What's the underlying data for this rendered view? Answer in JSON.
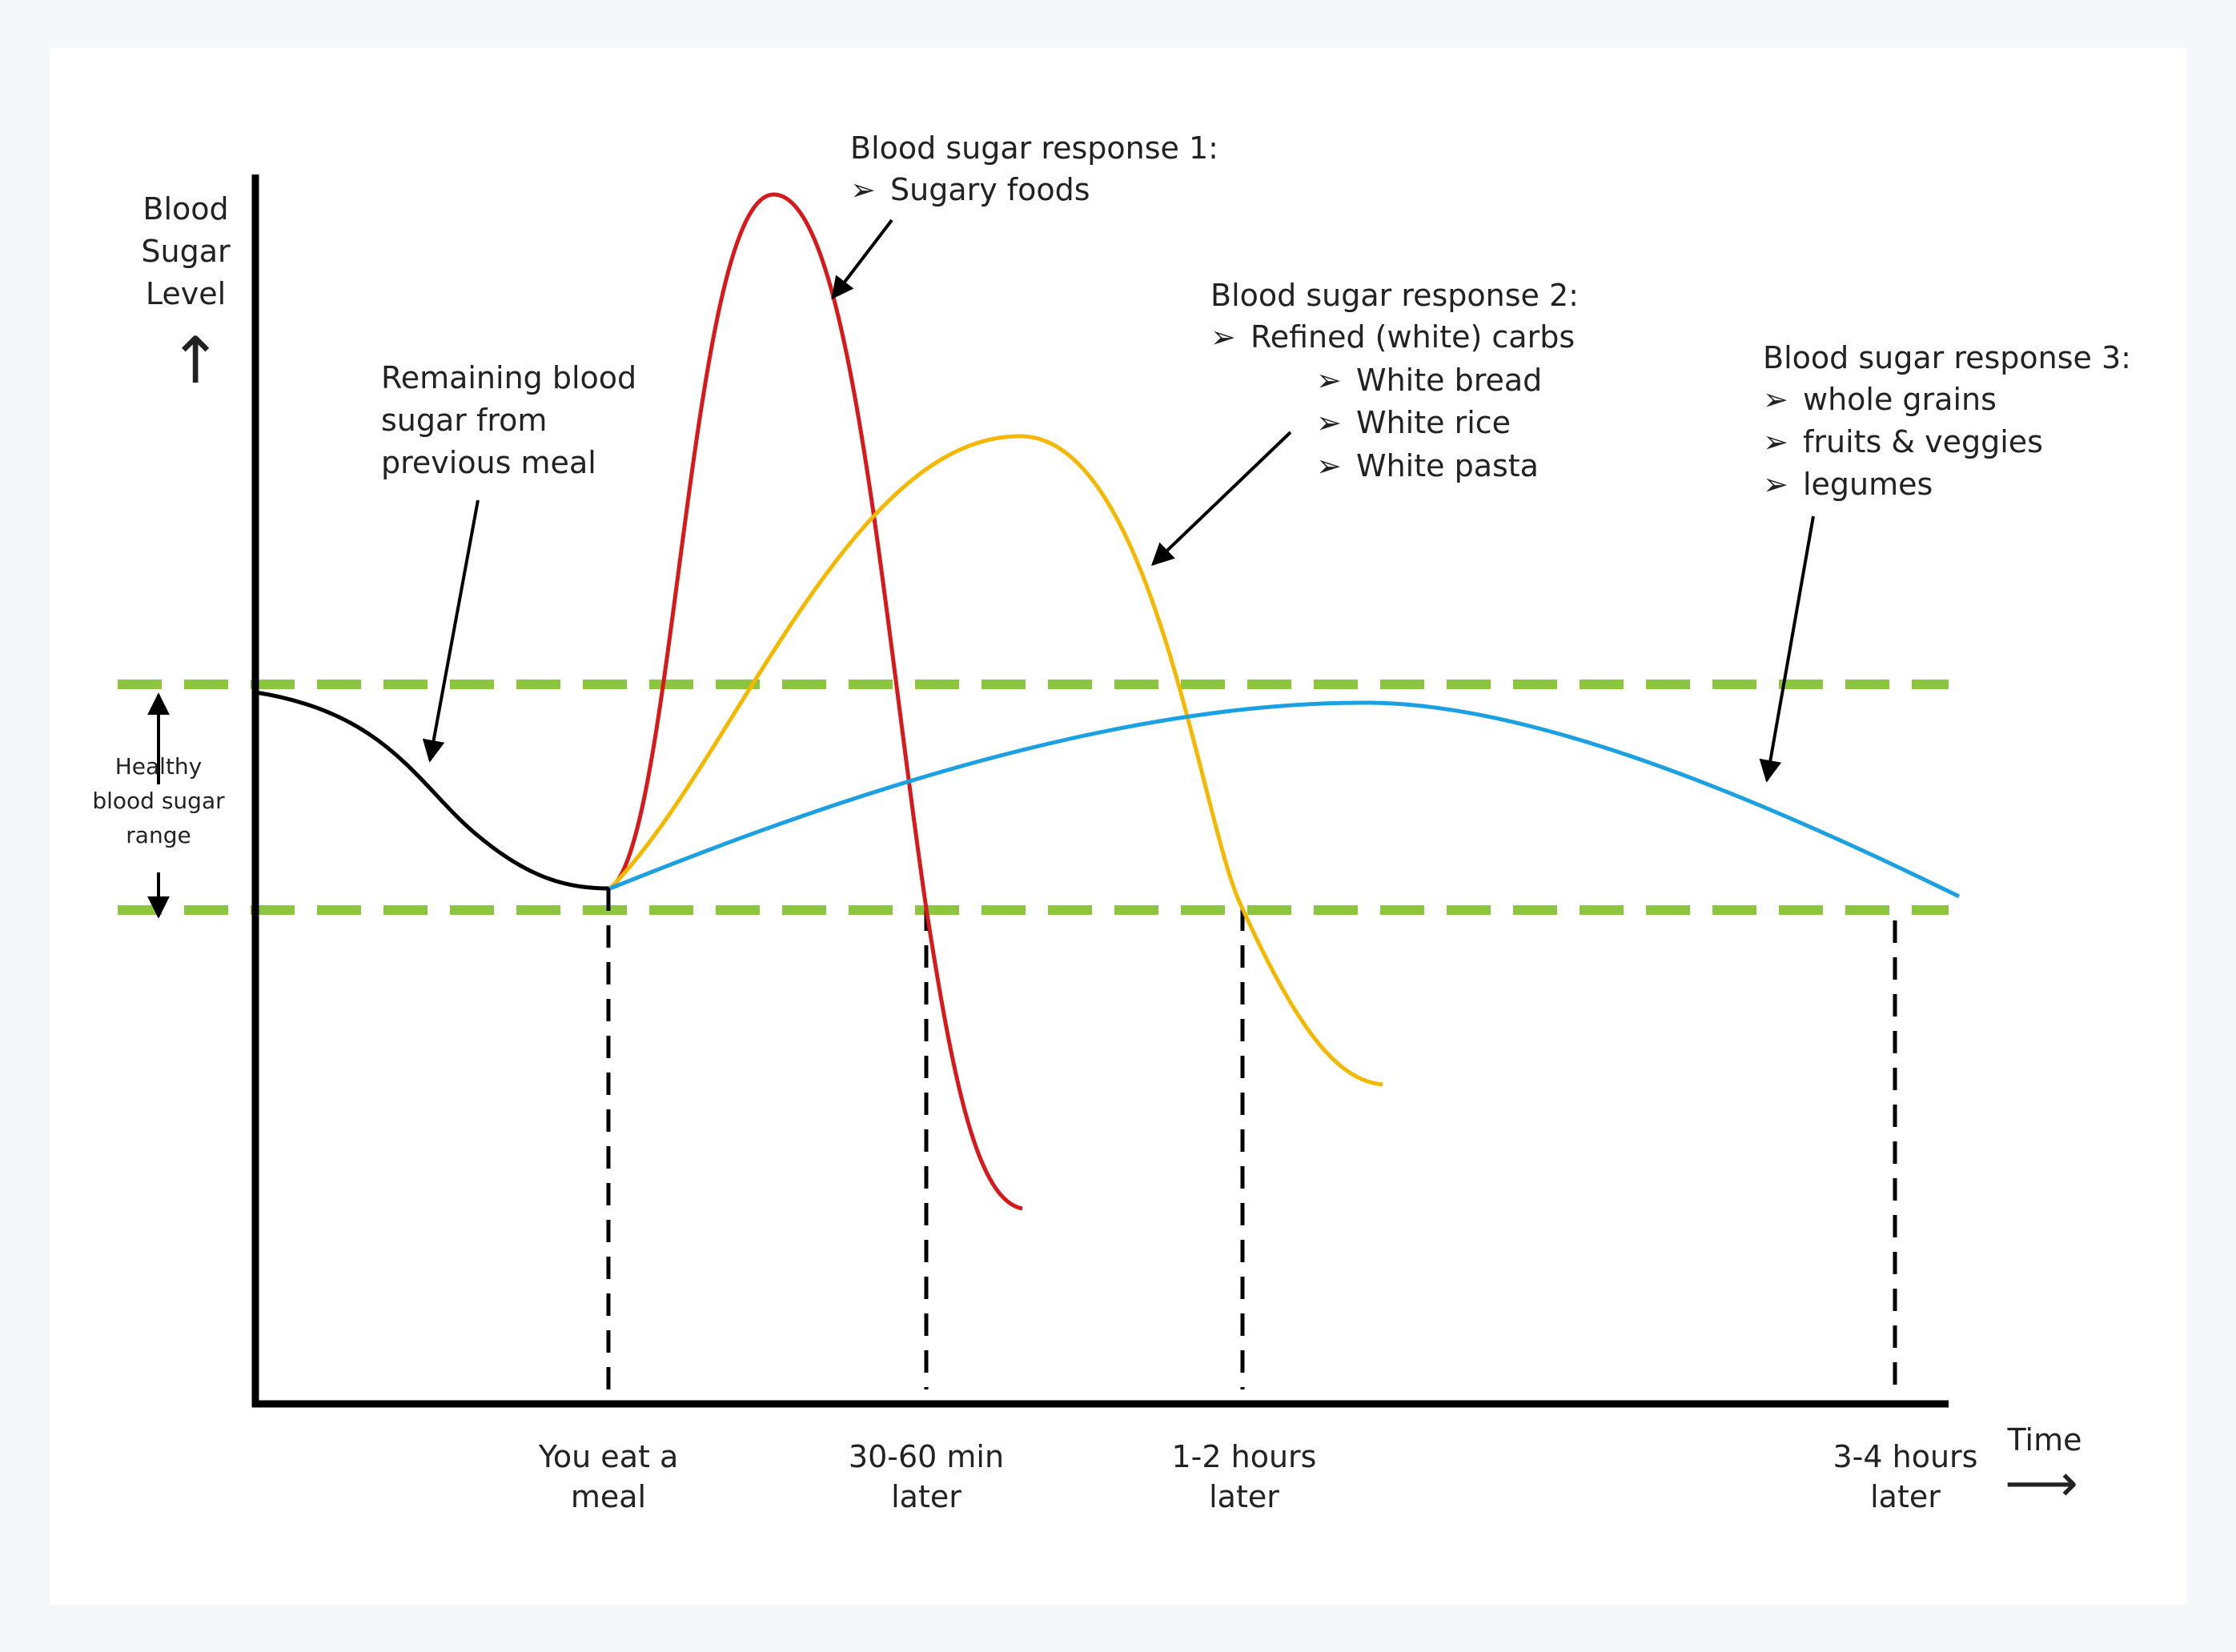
{
  "colors": {
    "background": "#f5f7fa",
    "card": "#ffffff",
    "axis": "#000000",
    "response_1": "#d7191c",
    "response_2": "#f5b800",
    "response_3": "#1ba1e2",
    "healthy_range": "#8cc63f",
    "baseline": "#000000"
  },
  "y_axis": {
    "line1": "Blood",
    "line2": "Sugar",
    "line3": "Level",
    "arrow": "↑"
  },
  "x_axis": {
    "label": "Time",
    "arrow": "⟶",
    "ticks": [
      {
        "line1": "You eat a",
        "line2": "meal"
      },
      {
        "line1": "30-60 min",
        "line2": "later"
      },
      {
        "line1": "1-2 hours",
        "line2": "later"
      },
      {
        "line1": "3-4 hours",
        "line2": "later"
      }
    ]
  },
  "healthy_range": {
    "line1": "Healthy",
    "line2": "blood sugar",
    "line3": "range"
  },
  "remaining_note": {
    "line1": "Remaining blood",
    "line2": "sugar from",
    "line3": "previous meal"
  },
  "responses": [
    {
      "title": "Blood sugar response 1:",
      "bullet": "➢",
      "items": [
        "Sugary foods"
      ]
    },
    {
      "title": "Blood sugar response 2:",
      "bullet": "➢",
      "items": [
        "Refined (white) carbs"
      ],
      "subitems": [
        "White bread",
        "White rice",
        "White pasta"
      ]
    },
    {
      "title": "Blood sugar response 3:",
      "bullet": "➢",
      "items": [
        "whole grains",
        "fruits & veggies",
        "legumes"
      ]
    }
  ]
}
